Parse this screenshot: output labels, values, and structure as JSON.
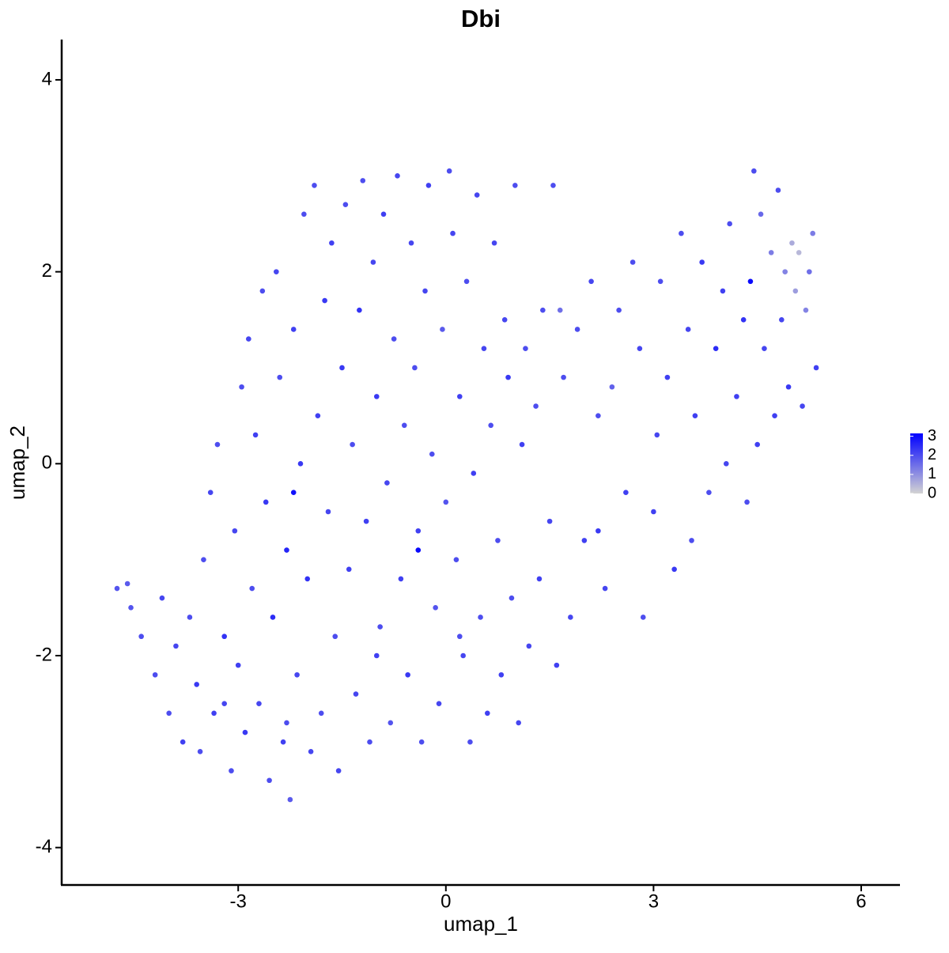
{
  "chart_data": {
    "type": "scatter",
    "title": "Dbi",
    "x_label": "umap_1",
    "y_label": "umap_2",
    "xlim": [
      -5.55,
      6.56
    ],
    "ylim": [
      -4.39,
      4.42
    ],
    "xticks": [
      -3,
      0,
      3,
      6
    ],
    "yticks": [
      -4,
      -2,
      0,
      2,
      4
    ],
    "x": [
      -4.75,
      -4.6,
      -4.55,
      -4.4,
      -4.2,
      -4.1,
      -4.0,
      -3.9,
      -3.8,
      -3.7,
      -3.6,
      -3.55,
      -3.5,
      -3.4,
      -3.35,
      -3.3,
      -3.2,
      -3.1,
      -3.05,
      -3.0,
      -2.95,
      -2.9,
      -2.85,
      -2.8,
      -2.75,
      -2.7,
      -2.65,
      -2.6,
      -2.55,
      -2.5,
      -2.45,
      -2.4,
      -2.35,
      -2.3,
      -2.25,
      -2.2,
      -2.15,
      -2.1,
      -2.05,
      -2.0,
      -1.95,
      -1.9,
      -1.85,
      -1.8,
      -1.75,
      -1.7,
      -1.65,
      -1.6,
      -1.55,
      -1.5,
      -1.45,
      -1.4,
      -1.35,
      -1.3,
      -1.25,
      -1.2,
      -1.15,
      -1.1,
      -1.05,
      -1.0,
      -0.95,
      -0.9,
      -0.85,
      -0.8,
      -0.75,
      -0.7,
      -0.65,
      -0.6,
      -0.55,
      -0.5,
      -0.45,
      -0.4,
      -0.35,
      -0.3,
      -0.25,
      -0.2,
      -0.15,
      -0.1,
      -0.05,
      0.0,
      0.05,
      0.1,
      0.15,
      0.2,
      0.25,
      0.3,
      0.35,
      0.4,
      0.45,
      0.5,
      0.55,
      0.6,
      0.65,
      0.7,
      0.75,
      0.8,
      0.85,
      0.9,
      0.95,
      1.0,
      1.05,
      1.1,
      1.15,
      1.2,
      1.3,
      1.35,
      1.4,
      1.5,
      1.55,
      1.6,
      1.65,
      1.7,
      1.8,
      1.9,
      2.0,
      2.1,
      2.2,
      2.3,
      2.4,
      2.5,
      2.6,
      2.7,
      2.8,
      2.85,
      3.0,
      3.05,
      3.1,
      3.2,
      3.3,
      3.4,
      3.5,
      3.55,
      3.6,
      3.7,
      3.8,
      3.9,
      4.0,
      4.05,
      4.1,
      4.2,
      4.3,
      4.35,
      4.4,
      4.45,
      4.5,
      4.55,
      4.6,
      4.7,
      4.75,
      4.8,
      4.85,
      4.9,
      4.95,
      5.0,
      5.05,
      5.1,
      5.15,
      5.2,
      5.25,
      5.3,
      5.35,
      -2.3,
      -3.2,
      -1.0,
      0.2,
      2.2,
      -0.4,
      -2.2
    ],
    "values": [
      -1.3,
      -1.25,
      -1.5,
      -1.8,
      -2.2,
      -1.4,
      -2.6,
      -1.9,
      -2.9,
      -1.6,
      -2.3,
      -3.0,
      -1.0,
      -0.3,
      -2.6,
      0.2,
      -1.8,
      -3.2,
      -0.7,
      -2.1,
      0.8,
      -2.8,
      1.3,
      -1.3,
      0.3,
      -2.5,
      1.8,
      -0.4,
      -3.3,
      -1.6,
      2.0,
      0.9,
      -2.9,
      -0.9,
      -3.5,
      1.4,
      -2.2,
      0.0,
      2.6,
      -1.2,
      -3.0,
      2.9,
      0.5,
      -2.6,
      1.7,
      -0.5,
      2.3,
      -1.8,
      -3.2,
      1.0,
      2.7,
      -1.1,
      0.2,
      -2.4,
      1.6,
      2.95,
      -0.6,
      -2.9,
      2.1,
      0.7,
      -1.7,
      2.6,
      -0.2,
      -2.7,
      1.3,
      3.0,
      -1.2,
      0.4,
      -2.2,
      2.3,
      1.0,
      -0.7,
      -2.9,
      1.8,
      2.9,
      0.1,
      -1.5,
      -2.5,
      1.4,
      -0.4,
      3.05,
      2.4,
      -1.0,
      0.7,
      -2.0,
      1.9,
      -2.9,
      -0.1,
      2.8,
      -1.6,
      1.2,
      -2.6,
      0.4,
      2.3,
      -0.8,
      -2.2,
      1.5,
      0.9,
      -1.4,
      2.9,
      -2.7,
      0.2,
      1.2,
      -1.9,
      0.6,
      -1.2,
      1.6,
      -0.6,
      2.9,
      -2.1,
      1.6,
      0.9,
      -1.6,
      1.4,
      -0.8,
      1.9,
      0.5,
      -1.3,
      0.8,
      1.6,
      -0.3,
      2.1,
      1.2,
      -1.6,
      -0.5,
      0.3,
      1.9,
      0.9,
      -1.1,
      2.4,
      1.4,
      -0.8,
      0.5,
      2.1,
      -0.3,
      1.2,
      1.8,
      0.0,
      2.5,
      0.7,
      1.5,
      -0.4,
      1.9,
      3.05,
      0.2,
      2.6,
      1.2,
      2.2,
      0.5,
      2.85,
      1.5,
      2.0,
      0.8,
      2.3,
      1.8,
      2.2,
      0.6,
      1.6,
      2.0,
      2.4,
      1.0,
      -2.7,
      -2.5,
      -2.0,
      -1.8,
      -0.7,
      -0.9,
      -0.3
    ],
    "color_values": [
      1.9,
      1.8,
      1.9,
      2,
      2,
      2.1,
      2,
      2.1,
      2.2,
      2,
      2.3,
      2,
      2,
      2.1,
      2.2,
      2,
      2.4,
      2,
      2.1,
      2.2,
      2,
      2.3,
      2.1,
      2,
      2.2,
      2.1,
      2.0,
      2.3,
      2,
      2.5,
      2.1,
      2,
      2.2,
      2.6,
      1.8,
      2.2,
      2.1,
      2.3,
      2,
      2.4,
      2.1,
      2.0,
      2.2,
      2,
      2.3,
      2.1,
      2.2,
      2,
      2.1,
      2.3,
      2,
      2.2,
      2,
      2.1,
      2.4,
      2,
      2.2,
      2,
      2.1,
      2.3,
      2,
      2.2,
      2.1,
      1.9,
      2,
      2.1,
      2.2,
      2,
      2.3,
      2.1,
      2,
      2.2,
      2,
      2.1,
      2.2,
      2,
      1.9,
      2.1,
      1.8,
      1.9,
      2,
      2.1,
      2,
      2.2,
      2.1,
      2,
      2,
      2.2,
      2.1,
      2,
      2.1,
      2.2,
      2,
      2.1,
      2,
      2.2,
      2.1,
      2.3,
      2,
      2,
      2.1,
      2.2,
      2,
      2.1,
      2,
      2.2,
      2,
      2.1,
      2,
      2.2,
      1.5,
      2,
      2.1,
      2,
      2.2,
      2.1,
      2,
      2.1,
      1.7,
      2,
      2.2,
      2,
      2.1,
      2,
      2.2,
      2.1,
      2,
      2.2,
      2.3,
      2,
      2.1,
      2,
      2.2,
      2.3,
      2,
      2.5,
      2.2,
      2.1,
      2,
      2.2,
      2.4,
      2,
      3.0,
      2,
      2.2,
      1.6,
      2.1,
      1.3,
      2.2,
      2,
      2.1,
      1.2,
      2.3,
      0.6,
      0.8,
      0.4,
      2.1,
      1.2,
      1.5,
      1.3,
      2.2,
      2,
      2.1,
      2.2,
      2,
      2.3,
      3,
      2.9
    ],
    "color_scale": {
      "low": "#d3d3d3",
      "high": "#0000ff",
      "lim": [
        0,
        3.15
      ],
      "ticks": [
        0,
        1,
        2,
        3
      ]
    }
  }
}
